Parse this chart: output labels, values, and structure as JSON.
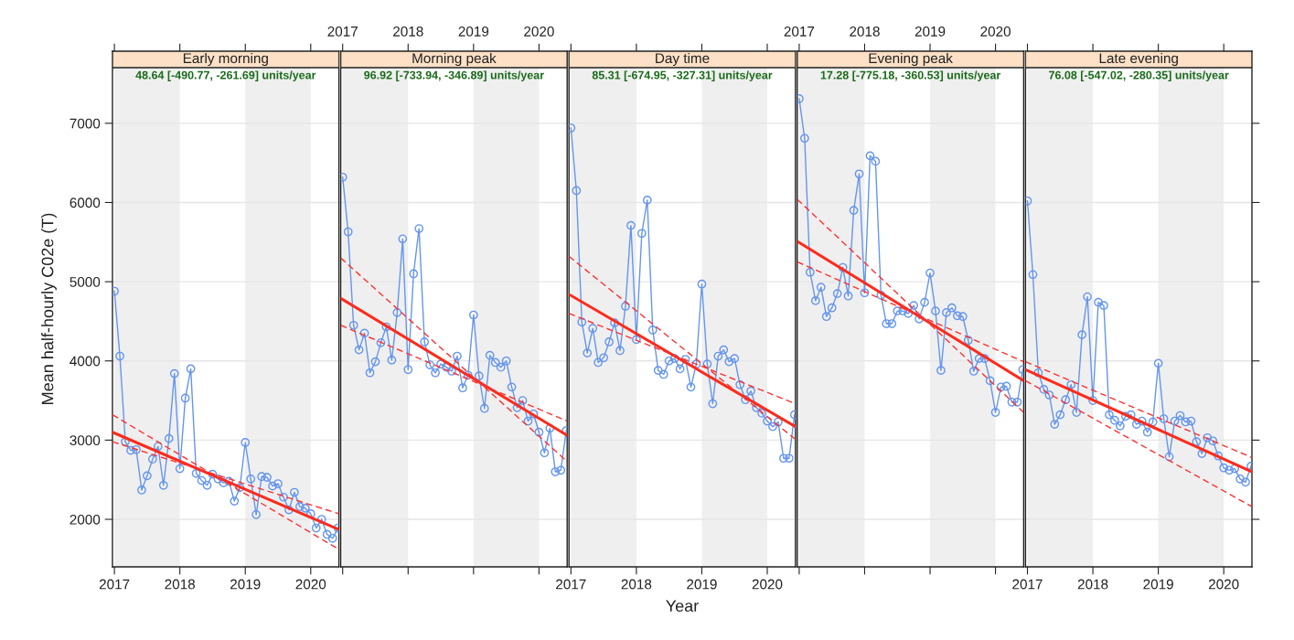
{
  "chart_data": [
    {
      "type": "line",
      "title": "Early morning",
      "ylabel": "Mean half-hourly C02e (T)",
      "annotations": [
        "48.64 [-490.77, -261.69] units/year"
      ],
      "x": [
        "2017-01",
        "2017-02",
        "2017-03",
        "2017-04",
        "2017-05",
        "2017-06",
        "2017-07",
        "2017-08",
        "2017-09",
        "2017-10",
        "2017-11",
        "2017-12",
        "2018-01",
        "2018-02",
        "2018-03",
        "2018-04",
        "2018-05",
        "2018-06",
        "2018-07",
        "2018-08",
        "2018-09",
        "2018-10",
        "2018-11",
        "2018-12",
        "2019-01",
        "2019-02",
        "2019-03",
        "2019-04",
        "2019-05",
        "2019-06",
        "2019-07",
        "2019-08",
        "2019-09",
        "2019-10",
        "2019-11",
        "2019-12",
        "2020-01",
        "2020-02",
        "2020-03",
        "2020-04",
        "2020-05",
        "2020-06"
      ],
      "series": [
        {
          "color": "#6495ed",
          "marker": "circle",
          "line_style": "solid",
          "values": [
            4880,
            4060,
            2980,
            2870,
            2880,
            2370,
            2550,
            2760,
            2920,
            2430,
            3020,
            3840,
            2640,
            3530,
            3900,
            2580,
            2490,
            2430,
            2570,
            2510,
            2460,
            2480,
            2230,
            2400,
            2970,
            2510,
            2060,
            2540,
            2530,
            2420,
            2450,
            2280,
            2120,
            2340,
            2160,
            2140,
            2070,
            1890,
            2000,
            1810,
            1760,
            1890
          ]
        },
        {
          "color": "#ff2a1a",
          "marker": "none",
          "line_style": "solid",
          "x": [
            "2016-12-21",
            "2020-06-06"
          ],
          "values": [
            3100,
            1870
          ]
        },
        {
          "color": "#ff3030",
          "marker": "none",
          "line_style": "dashed",
          "x": [
            "2016-12-21",
            "2020-06-06"
          ],
          "values": [
            3320,
            1620
          ]
        },
        {
          "color": "#ff3030",
          "marker": "none",
          "line_style": "dashed",
          "x": [
            "2016-12-21",
            "2020-06-06"
          ],
          "values": [
            2980,
            2070
          ]
        }
      ],
      "bands": [
        {
          "axis": "x",
          "from": "2017",
          "to": "2018",
          "color": "#efefef"
        },
        {
          "axis": "x",
          "from": "2019",
          "to": "2020",
          "color": "#efefef"
        }
      ],
      "xlim": [
        "2016-12-21",
        "2020-06-06"
      ],
      "xticks": [
        "2017",
        "2018",
        "2019",
        "2020"
      ],
      "ylim": [
        1400,
        7910
      ],
      "yticks": [
        2000,
        3000,
        4000,
        5000,
        6000,
        7000
      ],
      "grid": "y"
    },
    {
      "type": "line",
      "title": "Morning peak",
      "annotations": [
        "96.92 [-733.94, -346.89] units/year"
      ],
      "tick_labels": "x",
      "x": [
        "2017-01",
        "2017-02",
        "2017-03",
        "2017-04",
        "2017-05",
        "2017-06",
        "2017-07",
        "2017-08",
        "2017-09",
        "2017-10",
        "2017-11",
        "2017-12",
        "2018-01",
        "2018-02",
        "2018-03",
        "2018-04",
        "2018-05",
        "2018-06",
        "2018-07",
        "2018-08",
        "2018-09",
        "2018-10",
        "2018-11",
        "2018-12",
        "2019-01",
        "2019-02",
        "2019-03",
        "2019-04",
        "2019-05",
        "2019-06",
        "2019-07",
        "2019-08",
        "2019-09",
        "2019-10",
        "2019-11",
        "2019-12",
        "2020-01",
        "2020-02",
        "2020-03",
        "2020-04",
        "2020-05",
        "2020-06"
      ],
      "series": [
        {
          "color": "#6495ed",
          "marker": "circle",
          "line_style": "solid",
          "values": [
            6320,
            5630,
            4450,
            4140,
            4350,
            3850,
            3990,
            4230,
            4430,
            4010,
            4610,
            5540,
            3890,
            5100,
            5670,
            4240,
            3950,
            3850,
            3960,
            3920,
            3870,
            4060,
            3660,
            3820,
            4580,
            3810,
            3400,
            4070,
            3980,
            3920,
            4000,
            3670,
            3410,
            3500,
            3240,
            3330,
            3100,
            2840,
            3150,
            2600,
            2620,
            3120
          ]
        },
        {
          "color": "#ff2a1a",
          "marker": "none",
          "line_style": "solid",
          "x": [
            "2016-12-21",
            "2020-06-06"
          ],
          "values": [
            4790,
            3060
          ]
        },
        {
          "color": "#ff3030",
          "marker": "none",
          "line_style": "dashed",
          "x": [
            "2016-12-21",
            "2020-06-06"
          ],
          "values": [
            5300,
            2730
          ]
        },
        {
          "color": "#ff3030",
          "marker": "none",
          "line_style": "dashed",
          "x": [
            "2016-12-21",
            "2020-06-06"
          ],
          "values": [
            4450,
            3240
          ]
        }
      ],
      "bands": [
        {
          "axis": "x",
          "from": "2017",
          "to": "2018",
          "color": "#efefef"
        },
        {
          "axis": "x",
          "from": "2019",
          "to": "2020",
          "color": "#efefef"
        }
      ],
      "xlim": [
        "2016-12-21",
        "2020-06-06"
      ],
      "x2lim": [
        "2016-12-21",
        "2020-06-06"
      ],
      "x2ticks": [
        "2017",
        "2018",
        "2019",
        "2020"
      ],
      "ylim": [
        1400,
        7910
      ],
      "yticks": [
        2000,
        3000,
        4000,
        5000,
        6000,
        7000
      ],
      "grid": "y"
    },
    {
      "type": "line",
      "title": "Day time",
      "xlabel": "Year",
      "annotations": [
        "85.31 [-674.95, -327.31] units/year"
      ],
      "x": [
        "2017-01",
        "2017-02",
        "2017-03",
        "2017-04",
        "2017-05",
        "2017-06",
        "2017-07",
        "2017-08",
        "2017-09",
        "2017-10",
        "2017-11",
        "2017-12",
        "2018-01",
        "2018-02",
        "2018-03",
        "2018-04",
        "2018-05",
        "2018-06",
        "2018-07",
        "2018-08",
        "2018-09",
        "2018-10",
        "2018-11",
        "2018-12",
        "2019-01",
        "2019-02",
        "2019-03",
        "2019-04",
        "2019-05",
        "2019-06",
        "2019-07",
        "2019-08",
        "2019-09",
        "2019-10",
        "2019-11",
        "2019-12",
        "2020-01",
        "2020-02",
        "2020-03",
        "2020-04",
        "2020-05",
        "2020-06"
      ],
      "series": [
        {
          "color": "#6495ed",
          "marker": "circle",
          "line_style": "solid",
          "values": [
            6940,
            6150,
            4490,
            4100,
            4410,
            3980,
            4040,
            4240,
            4480,
            4130,
            4690,
            5710,
            4270,
            5610,
            6030,
            4390,
            3880,
            3830,
            4000,
            4030,
            3900,
            4020,
            3670,
            3960,
            4970,
            3960,
            3460,
            4060,
            4140,
            3990,
            4030,
            3700,
            3510,
            3620,
            3410,
            3340,
            3240,
            3170,
            3230,
            2770,
            2770,
            3320
          ]
        },
        {
          "color": "#ff2a1a",
          "marker": "none",
          "line_style": "solid",
          "x": [
            "2016-12-21",
            "2020-06-06"
          ],
          "values": [
            4840,
            3170
          ]
        },
        {
          "color": "#ff3030",
          "marker": "none",
          "line_style": "dashed",
          "x": [
            "2016-12-21",
            "2020-06-06"
          ],
          "values": [
            5320,
            3010
          ]
        },
        {
          "color": "#ff3030",
          "marker": "none",
          "line_style": "dashed",
          "x": [
            "2016-12-21",
            "2020-06-06"
          ],
          "values": [
            4600,
            3460
          ]
        }
      ],
      "bands": [
        {
          "axis": "x",
          "from": "2017",
          "to": "2018",
          "color": "#efefef"
        },
        {
          "axis": "x",
          "from": "2019",
          "to": "2020",
          "color": "#efefef"
        }
      ],
      "xlim": [
        "2016-12-21",
        "2020-06-06"
      ],
      "xticks": [
        "2017",
        "2018",
        "2019",
        "2020"
      ],
      "ylim": [
        1400,
        7910
      ],
      "yticks": [
        2000,
        3000,
        4000,
        5000,
        6000,
        7000
      ],
      "grid": "y",
      "tick_labels": "x"
    },
    {
      "type": "line",
      "title": "Evening peak",
      "annotations": [
        "17.28 [-775.18, -360.53] units/year"
      ],
      "tick_labels": "x",
      "x": [
        "2017-01",
        "2017-02",
        "2017-03",
        "2017-04",
        "2017-05",
        "2017-06",
        "2017-07",
        "2017-08",
        "2017-09",
        "2017-10",
        "2017-11",
        "2017-12",
        "2018-01",
        "2018-02",
        "2018-03",
        "2018-04",
        "2018-05",
        "2018-06",
        "2018-07",
        "2018-08",
        "2018-09",
        "2018-10",
        "2018-11",
        "2018-12",
        "2019-01",
        "2019-02",
        "2019-03",
        "2019-04",
        "2019-05",
        "2019-06",
        "2019-07",
        "2019-08",
        "2019-09",
        "2019-10",
        "2019-11",
        "2019-12",
        "2020-01",
        "2020-02",
        "2020-03",
        "2020-04",
        "2020-05",
        "2020-06"
      ],
      "series": [
        {
          "color": "#6495ed",
          "marker": "circle",
          "line_style": "solid",
          "values": [
            7310,
            6810,
            5120,
            4760,
            4930,
            4560,
            4670,
            4850,
            5180,
            4820,
            5900,
            6360,
            4860,
            6590,
            6520,
            4830,
            4470,
            4470,
            4630,
            4630,
            4600,
            4700,
            4530,
            4740,
            5110,
            4630,
            3880,
            4610,
            4670,
            4570,
            4560,
            4260,
            3870,
            4030,
            4030,
            3750,
            3350,
            3670,
            3680,
            3480,
            3480,
            3890
          ]
        },
        {
          "color": "#ff2a1a",
          "marker": "none",
          "line_style": "solid",
          "x": [
            "2016-12-21",
            "2020-06-06"
          ],
          "values": [
            5510,
            3750
          ]
        },
        {
          "color": "#ff3030",
          "marker": "none",
          "line_style": "dashed",
          "x": [
            "2016-12-21",
            "2020-06-06"
          ],
          "values": [
            6040,
            3350
          ]
        },
        {
          "color": "#ff3030",
          "marker": "none",
          "line_style": "dashed",
          "x": [
            "2016-12-21",
            "2020-06-06"
          ],
          "values": [
            5250,
            3990
          ]
        }
      ],
      "bands": [
        {
          "axis": "x",
          "from": "2017",
          "to": "2018",
          "color": "#efefef"
        },
        {
          "axis": "x",
          "from": "2019",
          "to": "2020",
          "color": "#efefef"
        }
      ],
      "xlim": [
        "2016-12-21",
        "2020-06-06"
      ],
      "x2lim": [
        "2016-12-21",
        "2020-06-06"
      ],
      "x2ticks": [
        "2017",
        "2018",
        "2019",
        "2020"
      ],
      "ylim": [
        1400,
        7910
      ],
      "yticks": [
        2000,
        3000,
        4000,
        5000,
        6000,
        7000
      ],
      "grid": "y"
    },
    {
      "type": "line",
      "title": "Late evening",
      "annotations": [
        "76.08 [-547.02, -280.35] units/year"
      ],
      "x": [
        "2017-01",
        "2017-02",
        "2017-03",
        "2017-04",
        "2017-05",
        "2017-06",
        "2017-07",
        "2017-08",
        "2017-09",
        "2017-10",
        "2017-11",
        "2017-12",
        "2018-01",
        "2018-02",
        "2018-03",
        "2018-04",
        "2018-05",
        "2018-06",
        "2018-07",
        "2018-08",
        "2018-09",
        "2018-10",
        "2018-11",
        "2018-12",
        "2019-01",
        "2019-02",
        "2019-03",
        "2019-04",
        "2019-05",
        "2019-06",
        "2019-07",
        "2019-08",
        "2019-09",
        "2019-10",
        "2019-11",
        "2019-12",
        "2020-01",
        "2020-02",
        "2020-03",
        "2020-04",
        "2020-05",
        "2020-06"
      ],
      "series": [
        {
          "color": "#6495ed",
          "marker": "circle",
          "line_style": "solid",
          "values": [
            6020,
            5090,
            3850,
            3640,
            3570,
            3200,
            3320,
            3510,
            3700,
            3350,
            4330,
            4810,
            3500,
            4740,
            4700,
            3320,
            3250,
            3180,
            3300,
            3320,
            3200,
            3240,
            3100,
            3230,
            3970,
            3270,
            2790,
            3240,
            3310,
            3230,
            3240,
            2980,
            2830,
            3030,
            2990,
            2800,
            2650,
            2620,
            2640,
            2510,
            2470,
            2670
          ]
        },
        {
          "color": "#ff2a1a",
          "marker": "none",
          "line_style": "solid",
          "x": [
            "2016-12-21",
            "2020-06-06"
          ],
          "values": [
            3890,
            2600
          ]
        },
        {
          "color": "#ff3030",
          "marker": "none",
          "line_style": "dashed",
          "x": [
            "2016-12-21",
            "2020-06-06"
          ],
          "values": [
            3990,
            2780
          ]
        },
        {
          "color": "#ff3030",
          "marker": "none",
          "line_style": "dashed",
          "x": [
            "2016-12-21",
            "2020-06-06"
          ],
          "values": [
            3750,
            2160
          ]
        }
      ],
      "bands": [
        {
          "axis": "x",
          "from": "2017",
          "to": "2018",
          "color": "#efefef"
        },
        {
          "axis": "x",
          "from": "2019",
          "to": "2020",
          "color": "#efefef"
        }
      ],
      "xlim": [
        "2016-12-21",
        "2020-06-06"
      ],
      "xticks": [
        "2017",
        "2018",
        "2019",
        "2020"
      ],
      "ylim": [
        1400,
        7910
      ],
      "yticks": [
        2000,
        3000,
        4000,
        5000,
        6000,
        7000
      ],
      "grid": "y",
      "tick_labels": "x"
    }
  ]
}
